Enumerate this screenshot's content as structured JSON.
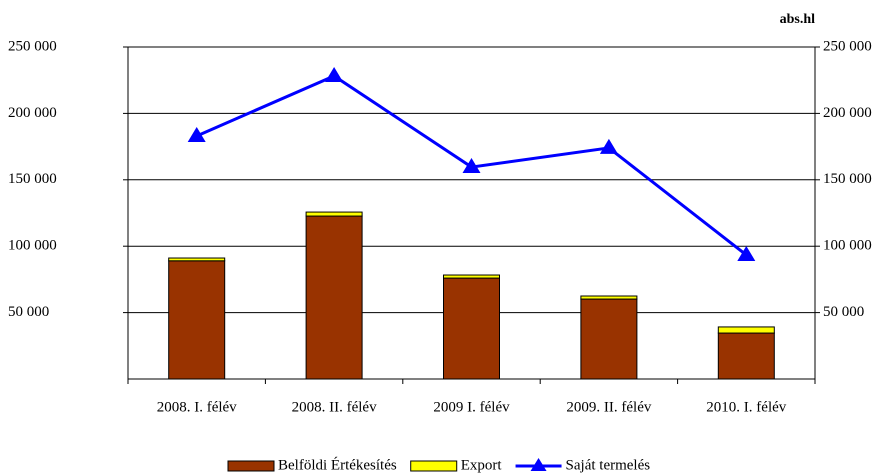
{
  "chart_data": {
    "type": "bar",
    "y2_label": "abs.hl",
    "categories": [
      "2008. I. félév",
      "2008. II. félév",
      "2009 I. félév",
      "2009. II. félév",
      "2010. I. félév"
    ],
    "series": [
      {
        "name": "Belföldi Értékesítés",
        "color": "#993300",
        "type": "bar",
        "values": [
          89000,
          122700,
          76000,
          60200,
          34600
        ]
      },
      {
        "name": "Export",
        "color": "#ffff00",
        "type": "bar",
        "values": [
          2100,
          3000,
          2300,
          2300,
          4600
        ]
      },
      {
        "name": "Saját termelés",
        "color": "#0000ff",
        "type": "line",
        "axis": "y2",
        "values": [
          183000,
          228200,
          159600,
          174000,
          93400
        ]
      }
    ],
    "ylim": [
      0,
      250000
    ],
    "yticks": [
      {
        "value": 50000,
        "label": "50 000"
      },
      {
        "value": 100000,
        "label": "100 000"
      },
      {
        "value": 150000,
        "label": "150 000"
      },
      {
        "value": 200000,
        "label": "200 000"
      },
      {
        "value": 250000,
        "label": "250 000"
      }
    ],
    "y2lim": [
      0,
      250000
    ],
    "y2ticks": [
      {
        "value": 50000,
        "label": "50 000"
      },
      {
        "value": 100000,
        "label": "100 000"
      },
      {
        "value": 150000,
        "label": "150 000"
      },
      {
        "value": 200000,
        "label": "200 000"
      },
      {
        "value": 250000,
        "label": "250 000"
      }
    ],
    "grid": true
  }
}
